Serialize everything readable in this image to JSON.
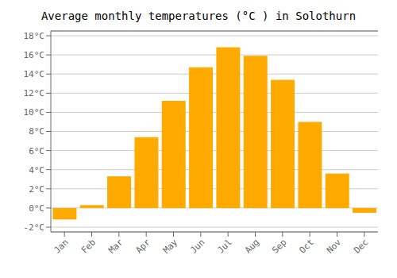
{
  "chart_data": {
    "type": "bar",
    "title": "Average monthly temperatures (°C ) in Solothurn",
    "categories": [
      "Jan",
      "Feb",
      "Mar",
      "Apr",
      "May",
      "Jun",
      "Jul",
      "Aug",
      "Sep",
      "Oct",
      "Nov",
      "Dec"
    ],
    "values": [
      -1.2,
      0.3,
      3.3,
      7.4,
      11.2,
      14.7,
      16.8,
      15.9,
      13.4,
      9.0,
      3.6,
      -0.5
    ],
    "color": "#FFAA00",
    "ylim": [
      -2.5,
      18.5
    ],
    "yticks": [
      {
        "value": -2,
        "label": "-2°C"
      },
      {
        "value": 0,
        "label": "0°C"
      },
      {
        "value": 2,
        "label": "2°C"
      },
      {
        "value": 4,
        "label": "4°C"
      },
      {
        "value": 6,
        "label": "6°C"
      },
      {
        "value": 8,
        "label": "8°C"
      },
      {
        "value": 10,
        "label": "10°C"
      },
      {
        "value": 12,
        "label": "12°C"
      },
      {
        "value": 14,
        "label": "14°C"
      },
      {
        "value": 16,
        "label": "16°C"
      },
      {
        "value": 18,
        "label": "18°C"
      }
    ],
    "grid": true
  }
}
